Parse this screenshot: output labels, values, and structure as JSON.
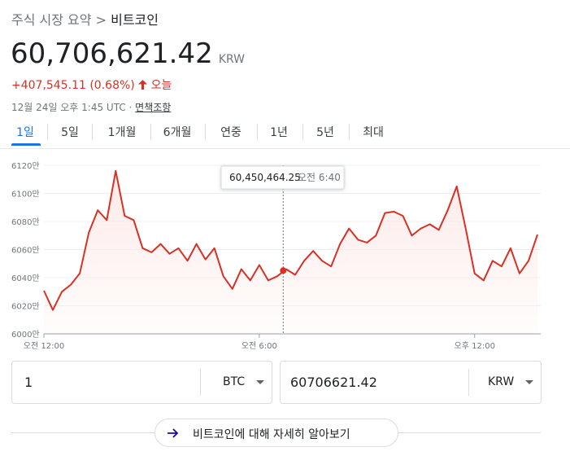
{
  "breadcrumb": {
    "parent": "주식 시장 요약",
    "separator": ">",
    "current": "비트코인"
  },
  "quote": {
    "price": "60,706,621.42",
    "currency": "KRW",
    "change": "+407,545.11 (0.68%)",
    "period": "오늘",
    "timestamp": "12월 24일 오후 1:45 UTC ·",
    "disclaimer": "면책조항"
  },
  "tabs": [
    "1일",
    "5일",
    "1개월",
    "6개월",
    "연중",
    "1년",
    "5년",
    "최대"
  ],
  "chart_data": {
    "type": "line",
    "color": "#d93025",
    "grid": true,
    "x": [
      0,
      0.25,
      0.5,
      0.75,
      1,
      1.25,
      1.5,
      1.75,
      2,
      2.25,
      2.5,
      2.75,
      3,
      3.25,
      3.5,
      3.75,
      4,
      4.25,
      4.5,
      4.75,
      5,
      5.25,
      5.5,
      5.75,
      6,
      6.25,
      6.5,
      6.75,
      7,
      7.25,
      7.5,
      7.75,
      8,
      8.25,
      8.5,
      8.75,
      9,
      9.25,
      9.5,
      9.75,
      10,
      10.25,
      10.5,
      10.75,
      11,
      11.25,
      11.5,
      11.75,
      12,
      12.25,
      12.5,
      12.75,
      13,
      13.25,
      13.5,
      13.75
    ],
    "values": [
      60307000,
      60170000,
      60300000,
      60350000,
      60430000,
      60720000,
      60880000,
      60810000,
      61160000,
      60840000,
      60810000,
      60610000,
      60580000,
      60640000,
      60570000,
      60610000,
      60520000,
      60640000,
      60530000,
      60610000,
      60410000,
      60320000,
      60460000,
      60380000,
      60490000,
      60380000,
      60410000,
      60460000,
      60420000,
      60520000,
      60590000,
      60520000,
      60480000,
      60640000,
      60750000,
      60670000,
      60650000,
      60700000,
      60860000,
      60870000,
      60840000,
      60700000,
      60750000,
      60780000,
      60740000,
      60880000,
      61050000,
      60750000,
      60430000,
      60380000,
      60520000,
      60480000,
      60610000,
      60430000,
      60520000,
      60706621.42
    ],
    "xlim": [
      0,
      13.75
    ],
    "xticks": [
      {
        "value": 0,
        "label": "오전 12:00"
      },
      {
        "value": 6,
        "label": "오전 6:00"
      },
      {
        "value": 12,
        "label": "오후 12:00"
      }
    ],
    "ylim": [
      60000000,
      61250000
    ],
    "yticks": [
      {
        "value": 60000000,
        "label": "6000만"
      },
      {
        "value": 60200000,
        "label": "6020만"
      },
      {
        "value": 60400000,
        "label": "6040만"
      },
      {
        "value": 60600000,
        "label": "6060만"
      },
      {
        "value": 60800000,
        "label": "6080만"
      },
      {
        "value": 61000000,
        "label": "6100만"
      },
      {
        "value": 61200000,
        "label": "6120만"
      }
    ],
    "tooltip": {
      "x": 6.6667,
      "value": 60450464.25,
      "value_label": "60,450,464.25",
      "time_label": "오전 6:40"
    }
  },
  "converter": {
    "amount": "1",
    "from": "BTC",
    "result": "60706621.42",
    "to": "KRW"
  },
  "more_link": "비트코인에 대해 자세히 알아보기"
}
